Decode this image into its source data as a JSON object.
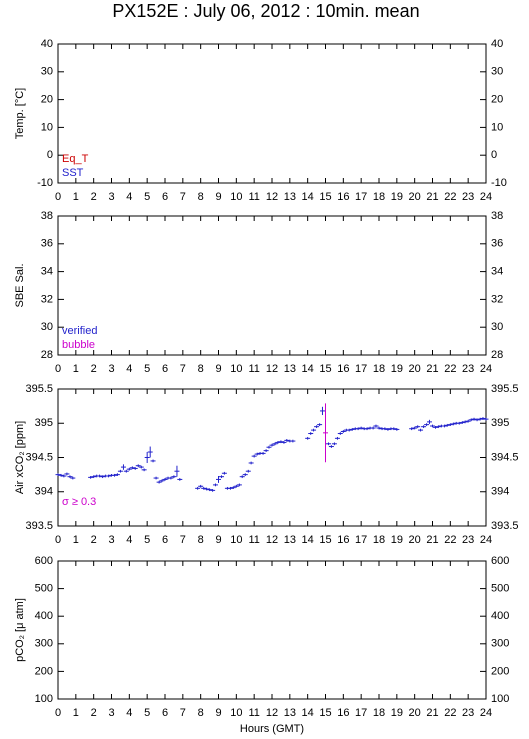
{
  "title": "PX152E : July 06, 2012 : 10min. mean",
  "chart_data": [
    {
      "type": "scatter",
      "ylabel": "Temp. [°C]",
      "xlim": [
        0,
        24
      ],
      "ylim": [
        -10,
        40
      ],
      "yticks": [
        -10,
        0,
        10,
        20,
        30,
        40
      ],
      "xticks": [
        0,
        1,
        2,
        3,
        4,
        5,
        6,
        7,
        8,
        9,
        10,
        11,
        12,
        13,
        14,
        15,
        16,
        17,
        18,
        19,
        20,
        21,
        22,
        23,
        24
      ],
      "legend": "lower left",
      "series": [
        {
          "name": "Eq_T",
          "color": "#cc0000",
          "x": [],
          "values": []
        },
        {
          "name": "SST",
          "color": "#2222cc",
          "x": [],
          "values": []
        }
      ]
    },
    {
      "type": "scatter",
      "ylabel": "SBE Sal.",
      "xlim": [
        0,
        24
      ],
      "ylim": [
        28,
        38
      ],
      "yticks": [
        28,
        30,
        32,
        34,
        36,
        38
      ],
      "xticks": [
        0,
        1,
        2,
        3,
        4,
        5,
        6,
        7,
        8,
        9,
        10,
        11,
        12,
        13,
        14,
        15,
        16,
        17,
        18,
        19,
        20,
        21,
        22,
        23,
        24
      ],
      "legend": "lower left",
      "series": [
        {
          "name": "verified",
          "color": "#2222cc",
          "x": [],
          "values": []
        },
        {
          "name": "bubble",
          "color": "#cc00cc",
          "x": [],
          "values": []
        }
      ]
    },
    {
      "type": "scatter",
      "ylabel": "Air xCO₂ [ppm]",
      "xlim": [
        0,
        24
      ],
      "ylim": [
        393.5,
        395.5
      ],
      "yticks": [
        393.5,
        394,
        394.5,
        395,
        395.5
      ],
      "xticks": [
        0,
        1,
        2,
        3,
        4,
        5,
        6,
        7,
        8,
        9,
        10,
        11,
        12,
        13,
        14,
        15,
        16,
        17,
        18,
        19,
        20,
        21,
        22,
        23,
        24
      ],
      "legend": "lower left",
      "series": [
        {
          "color": "#2222cc",
          "x": [
            0,
            0.17,
            0.33,
            0.5,
            0.67,
            0.83,
            1.83,
            2,
            2.17,
            2.33,
            2.5,
            2.67,
            2.83,
            3,
            3.17,
            3.33,
            3.5,
            3.67,
            3.83,
            4,
            4.17,
            4.33,
            4.5,
            4.67,
            4.83,
            5,
            5.17,
            5.33,
            5.5,
            5.67,
            5.83,
            6,
            6.17,
            6.33,
            6.5,
            6.67,
            6.83,
            7.83,
            8,
            8.17,
            8.33,
            8.5,
            8.67,
            8.83,
            9,
            9.17,
            9.33,
            9.5,
            9.67,
            9.83,
            10,
            10.17,
            10.33,
            10.5,
            10.67,
            10.83,
            11,
            11.17,
            11.33,
            11.5,
            11.67,
            11.83,
            12,
            12.17,
            12.33,
            12.5,
            12.67,
            12.83,
            13,
            13.17,
            14,
            14.17,
            14.33,
            14.5,
            14.67,
            14.83,
            15.17,
            15.33,
            15.5,
            15.67,
            15.83,
            16,
            16.17,
            16.33,
            16.5,
            16.67,
            16.83,
            17,
            17.17,
            17.33,
            17.5,
            17.67,
            17.83,
            18,
            18.17,
            18.33,
            18.5,
            18.67,
            18.83,
            19,
            19.83,
            20,
            20.17,
            20.33,
            20.5,
            20.67,
            20.83,
            21,
            21.17,
            21.33,
            21.5,
            21.67,
            21.83,
            22,
            22.17,
            22.33,
            22.5,
            22.67,
            22.83,
            23,
            23.17,
            23.33,
            23.5,
            23.67,
            23.83,
            24
          ],
          "values": [
            394.25,
            394.24,
            394.23,
            394.26,
            394.22,
            394.2,
            394.21,
            394.22,
            394.23,
            394.23,
            394.22,
            394.23,
            394.23,
            394.24,
            394.24,
            394.25,
            394.3,
            394.36,
            394.3,
            394.33,
            394.35,
            394.34,
            394.38,
            394.36,
            394.32,
            394.5,
            394.58,
            394.45,
            394.2,
            394.14,
            394.16,
            394.18,
            394.2,
            394.2,
            394.22,
            394.3,
            394.18,
            394.05,
            394.08,
            394.05,
            394.04,
            394.03,
            394.02,
            394.1,
            394.18,
            394.22,
            394.27,
            394.05,
            394.05,
            394.06,
            394.08,
            394.1,
            394.22,
            394.25,
            394.3,
            394.42,
            394.52,
            394.55,
            394.56,
            394.56,
            394.6,
            394.65,
            394.68,
            394.7,
            394.72,
            394.73,
            394.72,
            394.75,
            394.74,
            394.74,
            394.78,
            394.85,
            394.9,
            394.95,
            394.98,
            395.18,
            394.7,
            394.66,
            394.7,
            394.78,
            394.85,
            394.88,
            394.9,
            394.9,
            394.91,
            394.92,
            394.92,
            394.93,
            394.92,
            394.92,
            394.93,
            394.93,
            394.96,
            394.93,
            394.92,
            394.92,
            394.91,
            394.92,
            394.92,
            394.91,
            394.92,
            394.93,
            394.95,
            394.9,
            394.95,
            394.98,
            395.02,
            394.96,
            394.94,
            394.95,
            394.96,
            394.96,
            394.97,
            394.98,
            394.99,
            395,
            395,
            395.01,
            395.02,
            395.03,
            395.05,
            395.06,
            395.05,
            395.06,
            395.07,
            395.06
          ],
          "errors": [
            0.02,
            0.02,
            0.02,
            0.02,
            0.02,
            0.02,
            0.02,
            0.02,
            0.02,
            0.02,
            0.02,
            0.02,
            0.02,
            0.02,
            0.02,
            0.02,
            0.02,
            0.04,
            0.02,
            0.02,
            0.02,
            0.02,
            0.02,
            0.02,
            0.02,
            0.08,
            0.08,
            0.02,
            0.02,
            0.02,
            0.02,
            0.02,
            0.02,
            0.02,
            0.02,
            0.08,
            0.02,
            0.02,
            0.02,
            0.02,
            0.02,
            0.02,
            0.02,
            0.02,
            0.05,
            0.02,
            0.02,
            0.02,
            0.02,
            0.02,
            0.02,
            0.02,
            0.02,
            0.02,
            0.02,
            0.02,
            0.02,
            0.02,
            0.02,
            0.02,
            0.02,
            0.02,
            0.02,
            0.02,
            0.02,
            0.02,
            0.02,
            0.02,
            0.02,
            0.02,
            0.02,
            0.02,
            0.02,
            0.02,
            0.02,
            0.06,
            0.02,
            0.02,
            0.02,
            0.02,
            0.02,
            0.02,
            0.02,
            0.02,
            0.02,
            0.02,
            0.02,
            0.02,
            0.02,
            0.02,
            0.02,
            0.02,
            0.02,
            0.02,
            0.02,
            0.02,
            0.02,
            0.02,
            0.02,
            0.02,
            0.02,
            0.02,
            0.02,
            0.02,
            0.02,
            0.02,
            0.03,
            0.02,
            0.02,
            0.02,
            0.02,
            0.02,
            0.02,
            0.02,
            0.02,
            0.02,
            0.02,
            0.02,
            0.02,
            0.02,
            0.02,
            0.02,
            0.02,
            0.02,
            0.02,
            0.02
          ]
        },
        {
          "name": "σ ≥ 0.3",
          "color": "#cc00cc",
          "x": [
            15
          ],
          "values": [
            394.86
          ],
          "errors": [
            0.43
          ]
        }
      ]
    },
    {
      "type": "scatter",
      "ylabel": "pCO₂ [μ atm]",
      "xlabel": "Hours (GMT)",
      "xlim": [
        0,
        24
      ],
      "ylim": [
        100,
        600
      ],
      "yticks": [
        100,
        200,
        300,
        400,
        500,
        600
      ],
      "xticks": [
        0,
        1,
        2,
        3,
        4,
        5,
        6,
        7,
        8,
        9,
        10,
        11,
        12,
        13,
        14,
        15,
        16,
        17,
        18,
        19,
        20,
        21,
        22,
        23,
        24
      ],
      "series": []
    }
  ]
}
